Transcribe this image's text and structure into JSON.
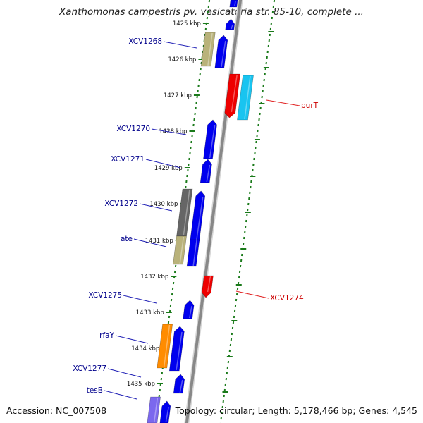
{
  "title": "Xanthomonas campestris pv. vesicatoria str. 85-10, complete ...",
  "footer": {
    "accession": "Accession: NC_007508",
    "topology": "Topology: circular; Length: 5,178,466 bp; Genes: 4,545"
  },
  "colors": {
    "cds": "#0000ee",
    "rna": "#ee0000",
    "tick": "#1a7a1a",
    "backbone": "#888888",
    "label_forward": "#00008b",
    "label_reverse": "#cc0000"
  },
  "kbp_ticks": [
    "1425 kbp",
    "1426 kbp",
    "1427 kbp",
    "1428 kbp",
    "1429 kbp",
    "1430 kbp",
    "1431 kbp",
    "1432 kbp",
    "1433 kbp",
    "1434 kbp",
    "1435 kbp"
  ],
  "forward_labels": [
    "XCV1268",
    "XCV1270",
    "XCV1271",
    "XCV1272",
    "ate",
    "XCV1275",
    "rfaY",
    "XCV1277",
    "tesB"
  ],
  "reverse_labels": [
    "purT",
    "XCV1274"
  ]
}
